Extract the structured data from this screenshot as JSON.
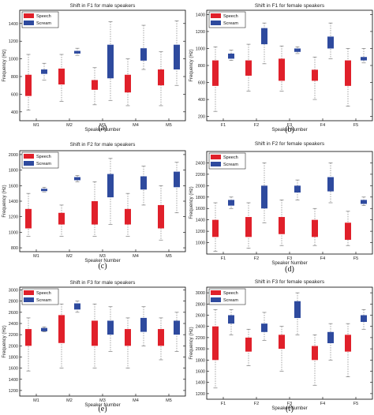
{
  "colors": {
    "speech": "#e0202a",
    "scream": "#2e4a9e",
    "whisker": "#666666",
    "frame": "#000000"
  },
  "chart_data": [
    {
      "type": "boxplot",
      "panel": "(a)",
      "title": "Shift in F1 for male speakers",
      "xlabel": "Speaker Number",
      "ylabel": "Frequency (Hz)",
      "categories": [
        "M1",
        "M2",
        "M3",
        "M4",
        "M5"
      ],
      "ylim": [
        300,
        1550
      ],
      "yticks": [
        400,
        600,
        800,
        1000,
        1200,
        1400
      ],
      "legend": {
        "position": "top-left",
        "entries": [
          "Speech",
          "Scream"
        ]
      },
      "series": [
        {
          "name": "Speech",
          "boxes": [
            {
              "low": 420,
              "q1": 580,
              "q3": 820,
              "high": 1050
            },
            {
              "low": 520,
              "q1": 710,
              "q3": 890,
              "high": 1050
            },
            {
              "low": 480,
              "q1": 650,
              "q3": 760,
              "high": 900
            },
            {
              "low": 470,
              "q1": 620,
              "q3": 820,
              "high": 1000
            },
            {
              "low": 470,
              "q1": 700,
              "q3": 880,
              "high": 1080
            }
          ]
        },
        {
          "name": "Scream",
          "boxes": [
            {
              "low": 760,
              "q1": 830,
              "q3": 880,
              "high": 950
            },
            {
              "low": 1040,
              "q1": 1060,
              "q3": 1090,
              "high": 1120
            },
            {
              "low": 530,
              "q1": 780,
              "q3": 1160,
              "high": 1420
            },
            {
              "low": 880,
              "q1": 980,
              "q3": 1120,
              "high": 1380
            },
            {
              "low": 700,
              "q1": 880,
              "q3": 1160,
              "high": 1430
            }
          ]
        }
      ]
    },
    {
      "type": "boxplot",
      "panel": "(b)",
      "title": "Shift in F1 for female speakers",
      "xlabel": "Speaker Number",
      "ylabel": "Frequency (Hz)",
      "categories": [
        "F1",
        "F2",
        "F3",
        "F4",
        "F5"
      ],
      "ylim": [
        150,
        1450
      ],
      "yticks": [
        200,
        400,
        600,
        800,
        1000,
        1200,
        1400
      ],
      "legend": {
        "position": "top-left",
        "entries": [
          "Speech",
          "Scream"
        ]
      },
      "series": [
        {
          "name": "Speech",
          "boxes": [
            {
              "low": 260,
              "q1": 560,
              "q3": 860,
              "high": 1020
            },
            {
              "low": 500,
              "q1": 680,
              "q3": 860,
              "high": 1050
            },
            {
              "low": 500,
              "q1": 620,
              "q3": 880,
              "high": 1030
            },
            {
              "low": 400,
              "q1": 620,
              "q3": 750,
              "high": 900
            },
            {
              "low": 320,
              "q1": 560,
              "q3": 860,
              "high": 1000
            }
          ]
        },
        {
          "name": "Scream",
          "boxes": [
            {
              "low": 860,
              "q1": 880,
              "q3": 940,
              "high": 980
            },
            {
              "low": 820,
              "q1": 1050,
              "q3": 1240,
              "high": 1300
            },
            {
              "low": 940,
              "q1": 960,
              "q3": 1000,
              "high": 1020
            },
            {
              "low": 880,
              "q1": 1000,
              "q3": 1140,
              "high": 1300
            },
            {
              "low": 830,
              "q1": 860,
              "q3": 900,
              "high": 1000
            }
          ]
        }
      ]
    },
    {
      "type": "boxplot",
      "panel": "(c)",
      "title": "Shift in F2 for male speakers",
      "xlabel": "Speaker Number",
      "ylabel": "Frequency (Hz)",
      "categories": [
        "M1",
        "M2",
        "M3",
        "M4",
        "M5"
      ],
      "ylim": [
        750,
        2050
      ],
      "yticks": [
        800,
        1000,
        1200,
        1400,
        1600,
        1800,
        2000
      ],
      "legend": {
        "position": "top-left",
        "entries": [
          "Speech",
          "Scream"
        ]
      },
      "series": [
        {
          "name": "Speech",
          "boxes": [
            {
              "low": 950,
              "q1": 1050,
              "q3": 1300,
              "high": 1500
            },
            {
              "low": 950,
              "q1": 1100,
              "q3": 1250,
              "high": 1350
            },
            {
              "low": 950,
              "q1": 1100,
              "q3": 1400,
              "high": 1650
            },
            {
              "low": 950,
              "q1": 1100,
              "q3": 1300,
              "high": 1500
            },
            {
              "low": 900,
              "q1": 1050,
              "q3": 1350,
              "high": 1600
            }
          ]
        },
        {
          "name": "Scream",
          "boxes": [
            {
              "low": 1520,
              "q1": 1530,
              "q3": 1560,
              "high": 1580
            },
            {
              "low": 1650,
              "q1": 1670,
              "q3": 1710,
              "high": 1730
            },
            {
              "low": 1100,
              "q1": 1450,
              "q3": 1750,
              "high": 1950
            },
            {
              "low": 1350,
              "q1": 1550,
              "q3": 1720,
              "high": 1850
            },
            {
              "low": 1250,
              "q1": 1580,
              "q3": 1780,
              "high": 1900
            }
          ]
        }
      ]
    },
    {
      "type": "boxplot",
      "panel": "(d)",
      "title": "Shift in F2 for female speakers",
      "xlabel": "Speaker Number",
      "ylabel": "Frequency (Hz)",
      "categories": [
        "F1",
        "F2",
        "F3",
        "F4",
        "F5"
      ],
      "ylim": [
        800,
        2600
      ],
      "yticks": [
        1000,
        1200,
        1400,
        1600,
        1800,
        2000,
        2200,
        2400
      ],
      "legend": {
        "position": "top-left",
        "entries": [
          "Speech",
          "Scream"
        ]
      },
      "series": [
        {
          "name": "Speech",
          "boxes": [
            {
              "low": 850,
              "q1": 1100,
              "q3": 1400,
              "high": 1700
            },
            {
              "low": 900,
              "q1": 1100,
              "q3": 1450,
              "high": 1700
            },
            {
              "low": 950,
              "q1": 1150,
              "q3": 1450,
              "high": 1750
            },
            {
              "low": 950,
              "q1": 1100,
              "q3": 1400,
              "high": 1600
            },
            {
              "low": 950,
              "q1": 1050,
              "q3": 1350,
              "high": 1550
            }
          ]
        },
        {
          "name": "Scream",
          "boxes": [
            {
              "low": 1600,
              "q1": 1650,
              "q3": 1750,
              "high": 1800
            },
            {
              "low": 1350,
              "q1": 1600,
              "q3": 2000,
              "high": 2400
            },
            {
              "low": 1750,
              "q1": 1880,
              "q3": 2000,
              "high": 2100
            },
            {
              "low": 1700,
              "q1": 1900,
              "q3": 2150,
              "high": 2400
            },
            {
              "low": 1650,
              "q1": 1680,
              "q3": 1750,
              "high": 1800
            }
          ]
        }
      ]
    },
    {
      "type": "boxplot",
      "panel": "(e)",
      "title": "Shift in F3 for male speakers",
      "xlabel": "Speaker Number",
      "ylabel": "Frequency (Hz)",
      "categories": [
        "M1",
        "M2",
        "M3",
        "M4",
        "M5"
      ],
      "ylim": [
        1100,
        3050
      ],
      "yticks": [
        1200,
        1400,
        1600,
        1800,
        2000,
        2200,
        2400,
        2600,
        2800,
        3000
      ],
      "legend": {
        "position": "top-left",
        "entries": [
          "Speech",
          "Scream"
        ]
      },
      "series": [
        {
          "name": "Speech",
          "boxes": [
            {
              "low": 1550,
              "q1": 2000,
              "q3": 2300,
              "high": 2500
            },
            {
              "low": 1600,
              "q1": 2050,
              "q3": 2550,
              "high": 2750
            },
            {
              "low": 1600,
              "q1": 2000,
              "q3": 2450,
              "high": 2750
            },
            {
              "low": 1600,
              "q1": 2000,
              "q3": 2300,
              "high": 2500
            },
            {
              "low": 1750,
              "q1": 2000,
              "q3": 2300,
              "high": 2500
            }
          ]
        },
        {
          "name": "Scream",
          "boxes": [
            {
              "low": 2250,
              "q1": 2260,
              "q3": 2320,
              "high": 2340
            },
            {
              "low": 2600,
              "q1": 2650,
              "q3": 2760,
              "high": 2800
            },
            {
              "low": 1900,
              "q1": 2200,
              "q3": 2450,
              "high": 2700
            },
            {
              "low": 2000,
              "q1": 2250,
              "q3": 2500,
              "high": 2700
            },
            {
              "low": 1900,
              "q1": 2200,
              "q3": 2450,
              "high": 2600
            }
          ]
        }
      ]
    },
    {
      "type": "boxplot",
      "panel": "(f)",
      "title": "Shift in F3 for female speakers",
      "xlabel": "Speaker Number",
      "ylabel": "Frequency (Hz)",
      "categories": [
        "F1",
        "F2",
        "F3",
        "F4",
        "F5"
      ],
      "ylim": [
        1100,
        3100
      ],
      "yticks": [
        1200,
        1400,
        1600,
        1800,
        2000,
        2200,
        2400,
        2600,
        2800,
        3000
      ],
      "legend": {
        "position": "top-left",
        "entries": [
          "Speech",
          "Scream"
        ]
      },
      "series": [
        {
          "name": "Speech",
          "boxes": [
            {
              "low": 1300,
              "q1": 1800,
              "q3": 2400,
              "high": 2700
            },
            {
              "low": 1700,
              "q1": 1950,
              "q3": 2200,
              "high": 2350
            },
            {
              "low": 1600,
              "q1": 2000,
              "q3": 2250,
              "high": 2400
            },
            {
              "low": 1350,
              "q1": 1800,
              "q3": 2050,
              "high": 2250
            },
            {
              "low": 1500,
              "q1": 1950,
              "q3": 2250,
              "high": 2450
            }
          ]
        },
        {
          "name": "Scream",
          "boxes": [
            {
              "low": 2250,
              "q1": 2450,
              "q3": 2600,
              "high": 2700
            },
            {
              "low": 2150,
              "q1": 2300,
              "q3": 2450,
              "high": 2650
            },
            {
              "low": 2250,
              "q1": 2550,
              "q3": 2850,
              "high": 3000
            },
            {
              "low": 1800,
              "q1": 2100,
              "q3": 2300,
              "high": 2450
            },
            {
              "low": 2350,
              "q1": 2480,
              "q3": 2600,
              "high": 2700
            }
          ]
        }
      ]
    }
  ]
}
